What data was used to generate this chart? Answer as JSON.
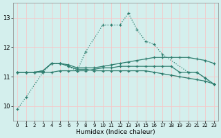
{
  "xlabel": "Humidex (Indice chaleur)",
  "bg_color": "#d4efed",
  "grid_color": "#f5c8c8",
  "line_color": "#2e7d6e",
  "xmin": -0.5,
  "xmax": 23.5,
  "ymin": 9.5,
  "ymax": 13.5,
  "yticks": [
    10,
    11,
    12,
    13
  ],
  "series": [
    {
      "data": [
        [
          0,
          9.9
        ],
        [
          1,
          10.3
        ],
        [
          3,
          11.15
        ],
        [
          4,
          11.45
        ],
        [
          5,
          11.45
        ],
        [
          6,
          11.35
        ],
        [
          7,
          11.2
        ],
        [
          8,
          11.85
        ],
        [
          10,
          12.75
        ],
        [
          11,
          12.75
        ],
        [
          12,
          12.75
        ],
        [
          13,
          13.15
        ],
        [
          14,
          12.6
        ],
        [
          15,
          12.2
        ],
        [
          16,
          12.1
        ],
        [
          17,
          11.75
        ],
        [
          20,
          11.15
        ],
        [
          21,
          11.15
        ],
        [
          22,
          10.95
        ],
        [
          23,
          10.75
        ]
      ],
      "style": "dotted"
    },
    {
      "data": [
        [
          0,
          11.15
        ],
        [
          1,
          11.15
        ],
        [
          2,
          11.15
        ],
        [
          3,
          11.2
        ],
        [
          4,
          11.45
        ],
        [
          5,
          11.45
        ],
        [
          6,
          11.4
        ],
        [
          7,
          11.3
        ],
        [
          8,
          11.3
        ],
        [
          9,
          11.3
        ],
        [
          10,
          11.35
        ],
        [
          11,
          11.4
        ],
        [
          12,
          11.45
        ],
        [
          13,
          11.5
        ],
        [
          14,
          11.55
        ],
        [
          15,
          11.6
        ],
        [
          16,
          11.65
        ],
        [
          17,
          11.65
        ],
        [
          18,
          11.65
        ],
        [
          19,
          11.65
        ],
        [
          20,
          11.65
        ],
        [
          21,
          11.6
        ],
        [
          22,
          11.55
        ],
        [
          23,
          11.45
        ]
      ],
      "style": "solid"
    },
    {
      "data": [
        [
          0,
          11.15
        ],
        [
          1,
          11.15
        ],
        [
          2,
          11.15
        ],
        [
          3,
          11.2
        ],
        [
          4,
          11.45
        ],
        [
          5,
          11.45
        ],
        [
          6,
          11.35
        ],
        [
          7,
          11.25
        ],
        [
          8,
          11.25
        ],
        [
          9,
          11.2
        ],
        [
          10,
          11.2
        ],
        [
          11,
          11.2
        ],
        [
          12,
          11.2
        ],
        [
          13,
          11.2
        ],
        [
          14,
          11.2
        ],
        [
          15,
          11.2
        ],
        [
          16,
          11.15
        ],
        [
          17,
          11.1
        ],
        [
          18,
          11.05
        ],
        [
          19,
          11.0
        ],
        [
          20,
          10.95
        ],
        [
          21,
          10.9
        ],
        [
          22,
          10.85
        ],
        [
          23,
          10.75
        ]
      ],
      "style": "solid"
    },
    {
      "data": [
        [
          0,
          11.15
        ],
        [
          1,
          11.15
        ],
        [
          2,
          11.15
        ],
        [
          3,
          11.15
        ],
        [
          4,
          11.15
        ],
        [
          5,
          11.2
        ],
        [
          6,
          11.2
        ],
        [
          7,
          11.2
        ],
        [
          8,
          11.2
        ],
        [
          9,
          11.25
        ],
        [
          10,
          11.3
        ],
        [
          11,
          11.3
        ],
        [
          12,
          11.35
        ],
        [
          13,
          11.35
        ],
        [
          14,
          11.35
        ],
        [
          15,
          11.35
        ],
        [
          16,
          11.35
        ],
        [
          17,
          11.35
        ],
        [
          18,
          11.35
        ],
        [
          19,
          11.15
        ],
        [
          20,
          11.15
        ],
        [
          21,
          11.15
        ],
        [
          22,
          10.95
        ],
        [
          23,
          10.75
        ]
      ],
      "style": "solid"
    }
  ]
}
